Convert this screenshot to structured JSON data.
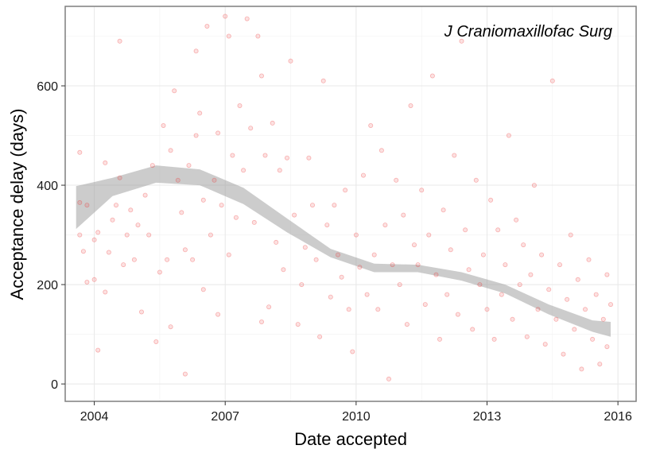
{
  "chart_data": {
    "type": "scatter",
    "title": "",
    "annotation": "J Craniomaxillofac Surg",
    "xlabel": "Date accepted",
    "ylabel": "Acceptance delay (days)",
    "x_ticks": [
      2004,
      2007,
      2010,
      2013,
      2016
    ],
    "x_tick_labels": [
      "2004",
      "2007",
      "2010",
      "2013",
      "2016"
    ],
    "y_ticks": [
      0,
      200,
      400,
      600
    ],
    "y_tick_labels": [
      "0",
      "200",
      "400",
      "600"
    ],
    "xlim": [
      "2003-05",
      "2016-06"
    ],
    "ylim": [
      -35,
      760
    ],
    "grid": true,
    "point_color": "#ee3333",
    "smooth_band_color": "#999999",
    "smooth_band": {
      "x": [
        "2003-08",
        "2004-06",
        "2005-06",
        "2006-06",
        "2007-06",
        "2008-06",
        "2009-06",
        "2010-06",
        "2011-06",
        "2012-06",
        "2013-06",
        "2014-06",
        "2015-06",
        "2015-11"
      ],
      "lower": [
        312,
        378,
        405,
        400,
        362,
        305,
        255,
        225,
        225,
        208,
        182,
        140,
        105,
        95
      ],
      "upper": [
        398,
        415,
        440,
        432,
        395,
        333,
        272,
        242,
        240,
        225,
        200,
        160,
        128,
        125
      ]
    },
    "points": [
      [
        "2003-09",
        466
      ],
      [
        "2003-09",
        365
      ],
      [
        "2003-09",
        300
      ],
      [
        "2003-10",
        267
      ],
      [
        "2003-11",
        205
      ],
      [
        "2003-11",
        360
      ],
      [
        "2004-01",
        290
      ],
      [
        "2004-01",
        210
      ],
      [
        "2004-02",
        305
      ],
      [
        "2004-02",
        68
      ],
      [
        "2004-04",
        445
      ],
      [
        "2004-04",
        185
      ],
      [
        "2004-05",
        265
      ],
      [
        "2004-06",
        330
      ],
      [
        "2004-07",
        360
      ],
      [
        "2004-08",
        415
      ],
      [
        "2004-08",
        690
      ],
      [
        "2004-09",
        240
      ],
      [
        "2004-10",
        300
      ],
      [
        "2004-11",
        350
      ],
      [
        "2004-12",
        250
      ],
      [
        "2005-01",
        320
      ],
      [
        "2005-02",
        145
      ],
      [
        "2005-03",
        380
      ],
      [
        "2005-04",
        300
      ],
      [
        "2005-05",
        440
      ],
      [
        "2005-06",
        85
      ],
      [
        "2005-07",
        225
      ],
      [
        "2005-08",
        520
      ],
      [
        "2005-09",
        250
      ],
      [
        "2005-10",
        470
      ],
      [
        "2005-10",
        115
      ],
      [
        "2005-11",
        590
      ],
      [
        "2005-12",
        410
      ],
      [
        "2006-01",
        345
      ],
      [
        "2006-02",
        20
      ],
      [
        "2006-02",
        270
      ],
      [
        "2006-03",
        440
      ],
      [
        "2006-04",
        250
      ],
      [
        "2006-05",
        500
      ],
      [
        "2006-05",
        670
      ],
      [
        "2006-06",
        545
      ],
      [
        "2006-07",
        370
      ],
      [
        "2006-07",
        190
      ],
      [
        "2006-08",
        720
      ],
      [
        "2006-09",
        300
      ],
      [
        "2006-10",
        410
      ],
      [
        "2006-11",
        505
      ],
      [
        "2006-11",
        140
      ],
      [
        "2006-12",
        360
      ],
      [
        "2007-01",
        740
      ],
      [
        "2007-02",
        700
      ],
      [
        "2007-02",
        260
      ],
      [
        "2007-03",
        460
      ],
      [
        "2007-04",
        335
      ],
      [
        "2007-05",
        560
      ],
      [
        "2007-06",
        430
      ],
      [
        "2007-07",
        735
      ],
      [
        "2007-08",
        515
      ],
      [
        "2007-09",
        325
      ],
      [
        "2007-10",
        700
      ],
      [
        "2007-11",
        620
      ],
      [
        "2007-11",
        125
      ],
      [
        "2007-12",
        460
      ],
      [
        "2008-01",
        155
      ],
      [
        "2008-02",
        525
      ],
      [
        "2008-03",
        285
      ],
      [
        "2008-04",
        430
      ],
      [
        "2008-05",
        230
      ],
      [
        "2008-06",
        455
      ],
      [
        "2008-07",
        650
      ],
      [
        "2008-08",
        340
      ],
      [
        "2008-09",
        120
      ],
      [
        "2008-10",
        200
      ],
      [
        "2008-11",
        275
      ],
      [
        "2008-12",
        455
      ],
      [
        "2009-01",
        360
      ],
      [
        "2009-02",
        250
      ],
      [
        "2009-03",
        95
      ],
      [
        "2009-04",
        610
      ],
      [
        "2009-05",
        320
      ],
      [
        "2009-06",
        175
      ],
      [
        "2009-07",
        360
      ],
      [
        "2009-08",
        260
      ],
      [
        "2009-09",
        215
      ],
      [
        "2009-10",
        390
      ],
      [
        "2009-11",
        150
      ],
      [
        "2009-12",
        65
      ],
      [
        "2010-01",
        300
      ],
      [
        "2010-02",
        235
      ],
      [
        "2010-03",
        420
      ],
      [
        "2010-04",
        180
      ],
      [
        "2010-05",
        520
      ],
      [
        "2010-06",
        260
      ],
      [
        "2010-07",
        150
      ],
      [
        "2010-08",
        470
      ],
      [
        "2010-09",
        320
      ],
      [
        "2010-10",
        10
      ],
      [
        "2010-11",
        240
      ],
      [
        "2010-12",
        410
      ],
      [
        "2011-01",
        200
      ],
      [
        "2011-02",
        340
      ],
      [
        "2011-03",
        120
      ],
      [
        "2011-04",
        560
      ],
      [
        "2011-05",
        280
      ],
      [
        "2011-06",
        240
      ],
      [
        "2011-07",
        390
      ],
      [
        "2011-08",
        160
      ],
      [
        "2011-09",
        300
      ],
      [
        "2011-10",
        620
      ],
      [
        "2011-11",
        220
      ],
      [
        "2011-12",
        90
      ],
      [
        "2012-01",
        350
      ],
      [
        "2012-02",
        180
      ],
      [
        "2012-03",
        270
      ],
      [
        "2012-04",
        460
      ],
      [
        "2012-05",
        140
      ],
      [
        "2012-06",
        690
      ],
      [
        "2012-07",
        310
      ],
      [
        "2012-08",
        230
      ],
      [
        "2012-09",
        110
      ],
      [
        "2012-10",
        410
      ],
      [
        "2012-11",
        200
      ],
      [
        "2012-12",
        260
      ],
      [
        "2013-01",
        150
      ],
      [
        "2013-02",
        370
      ],
      [
        "2013-03",
        90
      ],
      [
        "2013-04",
        310
      ],
      [
        "2013-05",
        180
      ],
      [
        "2013-06",
        240
      ],
      [
        "2013-07",
        500
      ],
      [
        "2013-08",
        130
      ],
      [
        "2013-09",
        330
      ],
      [
        "2013-10",
        200
      ],
      [
        "2013-11",
        280
      ],
      [
        "2013-12",
        95
      ],
      [
        "2014-01",
        220
      ],
      [
        "2014-02",
        400
      ],
      [
        "2014-03",
        150
      ],
      [
        "2014-04",
        260
      ],
      [
        "2014-05",
        80
      ],
      [
        "2014-06",
        190
      ],
      [
        "2014-07",
        610
      ],
      [
        "2014-08",
        130
      ],
      [
        "2014-09",
        240
      ],
      [
        "2014-10",
        60
      ],
      [
        "2014-11",
        170
      ],
      [
        "2014-12",
        300
      ],
      [
        "2015-01",
        110
      ],
      [
        "2015-02",
        210
      ],
      [
        "2015-03",
        30
      ],
      [
        "2015-04",
        150
      ],
      [
        "2015-05",
        250
      ],
      [
        "2015-06",
        90
      ],
      [
        "2015-07",
        180
      ],
      [
        "2015-08",
        40
      ],
      [
        "2015-09",
        130
      ],
      [
        "2015-10",
        220
      ],
      [
        "2015-10",
        75
      ],
      [
        "2015-11",
        160
      ]
    ]
  }
}
